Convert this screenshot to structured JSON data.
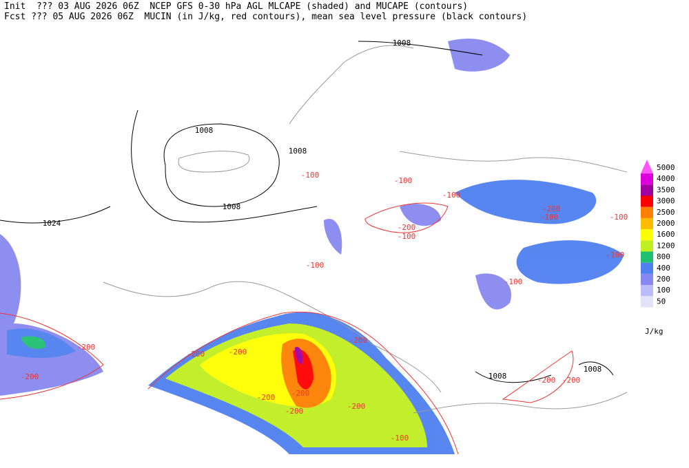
{
  "header": {
    "line1": "Init  ??? 03 AUG 2026 06Z  NCEP GFS 0-30 hPa AGL MLCAPE (shaded) and MUCAPE (contours)",
    "line2": "Fcst ??? 05 AUG 2026 06Z  MUCIN (in J/kg, red contours), mean sea level pressure (black contours)"
  },
  "legend": {
    "unit": "J/kg",
    "levels": [
      5000,
      4000,
      3500,
      3000,
      2500,
      2000,
      1600,
      1200,
      800,
      400,
      200,
      100,
      50
    ],
    "colors": [
      "#ff55ff",
      "#dd00dd",
      "#a000a0",
      "#ff0000",
      "#ff8000",
      "#ffbb00",
      "#ffff00",
      "#c0ee20",
      "#20c070",
      "#5080f0",
      "#8888f0",
      "#bcbcf8",
      "#e2e2fa"
    ]
  },
  "map": {
    "pressure_labels": [
      1008,
      1008,
      1008,
      1008,
      1024,
      1008,
      1008
    ],
    "cin_labels": [
      -100,
      -100,
      -200,
      -100,
      -100,
      -200,
      -100,
      -100,
      -100,
      -100,
      -100,
      -200,
      -200,
      -200,
      -200,
      -200,
      -200,
      -200,
      -200,
      -200,
      -100,
      -200,
      -200
    ]
  }
}
